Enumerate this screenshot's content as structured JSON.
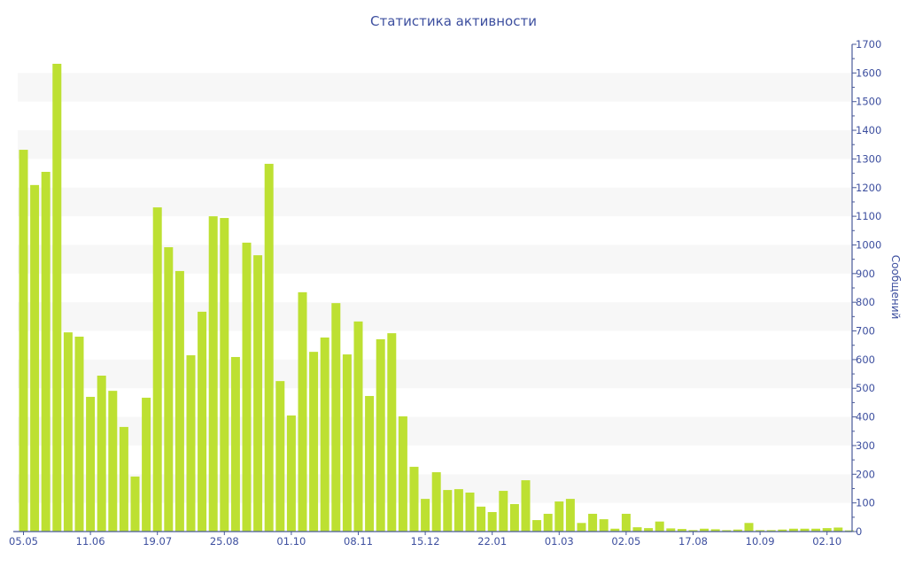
{
  "chart_data": {
    "type": "bar",
    "title": "Статистика активности",
    "xlabel": "",
    "ylabel": "Сообщений",
    "ylim": [
      0,
      1700
    ],
    "y_ticks": [
      0,
      100,
      200,
      300,
      400,
      500,
      600,
      700,
      800,
      900,
      1000,
      1100,
      1200,
      1300,
      1400,
      1500,
      1600,
      1700
    ],
    "y_axis_side": "right",
    "grid": "alternating horizontal bands",
    "x_tick_labels": [
      {
        "bar": 1,
        "label": "05.05"
      },
      {
        "bar": 7,
        "label": "11.06"
      },
      {
        "bar": 13,
        "label": "19.07"
      },
      {
        "bar": 19,
        "label": "25.08"
      },
      {
        "bar": 25,
        "label": "01.10"
      },
      {
        "bar": 31,
        "label": "08.11"
      },
      {
        "bar": 37,
        "label": "15.12"
      },
      {
        "bar": 43,
        "label": "22.01"
      },
      {
        "bar": 49,
        "label": "01.03"
      },
      {
        "bar": 55,
        "label": "02.05"
      },
      {
        "bar": 61,
        "label": "17.08"
      },
      {
        "bar": 67,
        "label": "10.09"
      },
      {
        "bar": 73,
        "label": "02.10"
      }
    ],
    "values": [
      1332,
      1209,
      1255,
      1632,
      695,
      680,
      470,
      544,
      491,
      365,
      192,
      467,
      1131,
      992,
      909,
      615,
      767,
      1100,
      1094,
      609,
      1008,
      964,
      1283,
      525,
      405,
      835,
      627,
      677,
      797,
      618,
      733,
      473,
      671,
      692,
      402,
      226,
      114,
      207,
      145,
      148,
      136,
      87,
      68,
      142,
      96,
      179,
      40,
      62,
      105,
      114,
      30,
      62,
      43,
      10,
      62,
      15,
      12,
      35,
      11,
      9,
      5,
      10,
      8,
      5,
      7,
      30,
      5,
      5,
      7,
      10,
      10,
      10,
      12,
      14,
      4
    ],
    "colors": {
      "bar": "#bde032",
      "axis": "#4a5a9a",
      "text": "#3d4f9f",
      "band": "#f7f7f7"
    }
  }
}
